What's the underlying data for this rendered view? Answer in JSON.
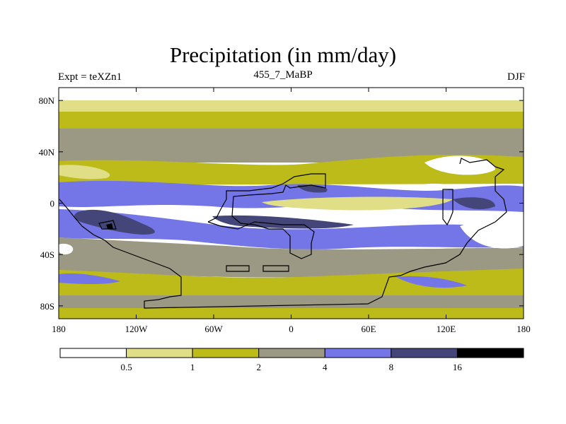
{
  "title": "Precipitation (in mm/day)",
  "subtitle": {
    "left": "Expt = teXZn1",
    "center": "455_7_MaBP",
    "right": "DJF"
  },
  "colors": {
    "c0": "#ffffff",
    "c1": "#e0df87",
    "c2": "#bdbb1a",
    "c3": "#9b9884",
    "c4": "#7475e6",
    "c5": "#444679",
    "c6": "#000000",
    "coast": "#000000"
  },
  "chart_data": {
    "type": "map-contour",
    "title": "Precipitation (in mm/day)",
    "variable": "Precipitation",
    "units": "mm/day",
    "experiment": "teXZn1",
    "period": "455_7_MaBP",
    "season": "DJF",
    "x_ticks": [
      "180",
      "120W",
      "60W",
      "0",
      "60E",
      "120E",
      "180"
    ],
    "x_values": [
      -180,
      -120,
      -60,
      0,
      60,
      120,
      180
    ],
    "y_ticks": [
      "80N",
      "40N",
      "0",
      "40S",
      "80S"
    ],
    "y_values": [
      80,
      40,
      0,
      -40,
      -80
    ],
    "lon_range": [
      -180,
      180
    ],
    "lat_range": [
      -90,
      90
    ],
    "colorbar_levels": [
      "0.5",
      "1",
      "2",
      "4",
      "8",
      "16"
    ],
    "colorbar_values": [
      0.5,
      1,
      2,
      4,
      8,
      16
    ],
    "bins": 7
  }
}
